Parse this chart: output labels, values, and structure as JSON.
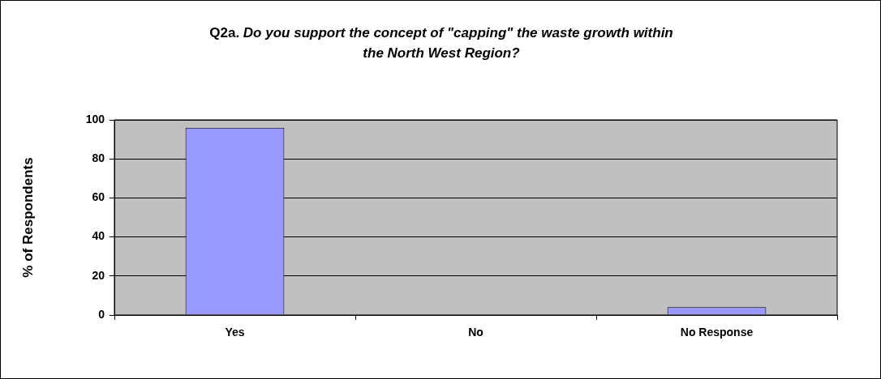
{
  "chart_data": {
    "type": "bar",
    "title": "Q2a.  Do you support the concept of \"capping\" the waste growth within the North West Region?",
    "ylabel": "% of Respondents",
    "categories": [
      "Yes",
      "No",
      "No Response"
    ],
    "values": [
      96,
      0,
      4
    ],
    "color": "#9999ff",
    "ylim": [
      0,
      100
    ],
    "yticks": [
      0,
      20,
      40,
      60,
      80,
      100
    ],
    "grid": "y"
  }
}
